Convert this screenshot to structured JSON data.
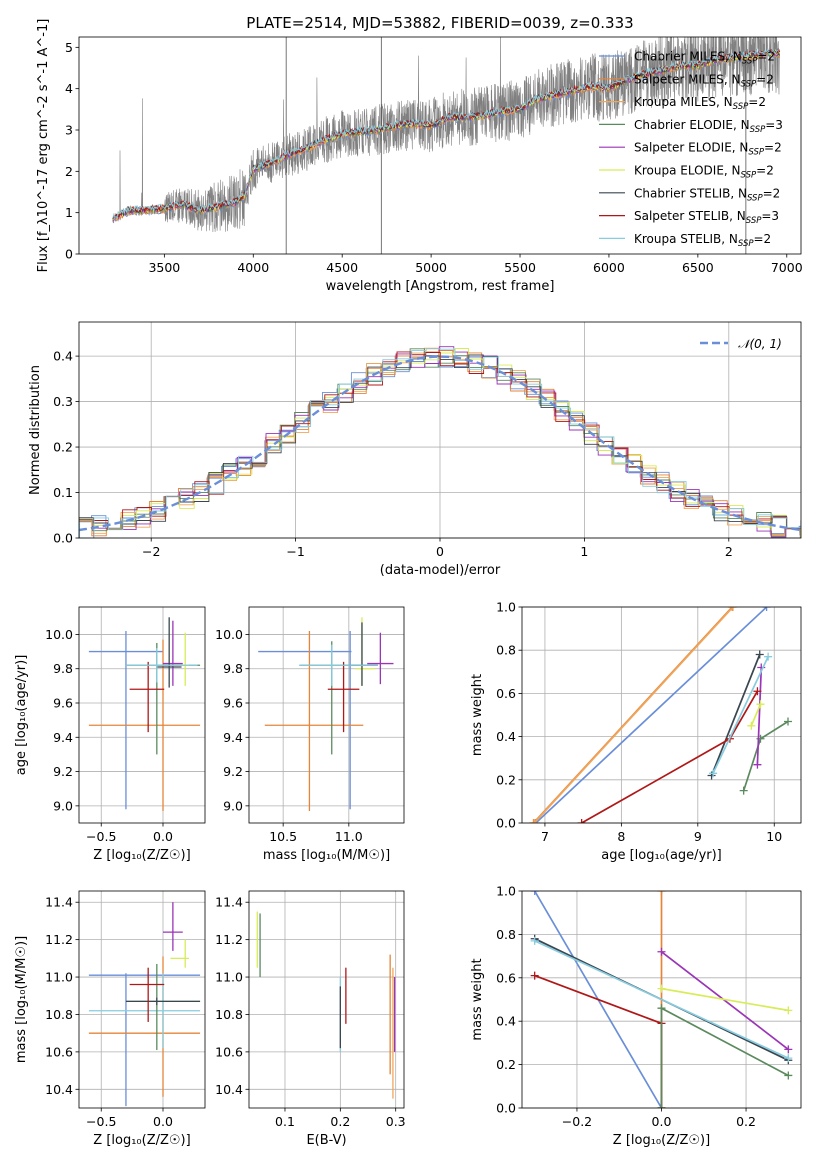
{
  "colors": {
    "chabrier_miles": "#6a8fd8",
    "salpeter_miles": "#e5853a",
    "kroupa_miles": "#f0a65a",
    "chabrier_elodie": "#5a8a5e",
    "salpeter_elodie": "#9b34b8",
    "kroupa_elodie": "#d8ec58",
    "chabrier_stelib": "#3a4650",
    "salpeter_stelib": "#b01818",
    "kroupa_stelib": "#88cce0",
    "data": "#808080",
    "grid": "#b0b0b0"
  },
  "chart_data": [
    {
      "type": "line",
      "title": "PLATE=2514, MJD=53882, FIBERID=0039, z=0.333",
      "xlabel": "wavelength [Angstrom, rest frame]",
      "ylabel": "Flux [f_λ10^-17 erg cm^-2 s^-1 A^-1]",
      "xlim": [
        3020,
        7080
      ],
      "ylim": [
        0,
        5.25
      ],
      "xticks": [
        "3500",
        "4000",
        "4500",
        "5000",
        "5500",
        "6000",
        "6500",
        "7000"
      ],
      "yticks": [
        "0",
        "1",
        "2",
        "3",
        "4",
        "5"
      ],
      "x_range_data": [
        3210,
        6960
      ],
      "continuum": {
        "x": [
          3210,
          3300,
          3400,
          3500,
          3600,
          3700,
          3800,
          3900,
          3950,
          4000,
          4100,
          4200,
          4300,
          4400,
          4500,
          4600,
          4700,
          4800,
          4900,
          5000,
          5100,
          5200,
          5300,
          5400,
          5500,
          5600,
          5700,
          5800,
          5900,
          6000,
          6100,
          6200,
          6300,
          6400,
          6500,
          6600,
          6700,
          6800,
          6900,
          6960
        ],
        "y": [
          0.85,
          1.05,
          1.05,
          1.1,
          1.2,
          1.05,
          1.15,
          1.25,
          1.4,
          2.05,
          2.2,
          2.4,
          2.55,
          2.75,
          2.9,
          2.95,
          3.0,
          3.1,
          3.15,
          3.1,
          3.3,
          3.3,
          3.35,
          3.45,
          3.5,
          3.75,
          3.85,
          3.95,
          4.05,
          4.0,
          4.2,
          4.35,
          4.45,
          4.55,
          4.55,
          4.7,
          4.75,
          4.8,
          4.85,
          4.85
        ]
      },
      "legend_position": "right",
      "series": [
        {
          "name": "Chabrier MILES, N_SSP=2",
          "color": "chabrier_miles"
        },
        {
          "name": "Salpeter MILES, N_SSP=2",
          "color": "salpeter_miles"
        },
        {
          "name": "Kroupa MILES, N_SSP=2",
          "color": "kroupa_miles"
        },
        {
          "name": "Chabrier ELODIE, N_SSP=3",
          "color": "chabrier_elodie"
        },
        {
          "name": "Salpeter ELODIE, N_SSP=2",
          "color": "salpeter_elodie"
        },
        {
          "name": "Kroupa ELODIE, N_SSP=2",
          "color": "kroupa_elodie"
        },
        {
          "name": "Chabrier STELIB, N_SSP=2",
          "color": "chabrier_stelib"
        },
        {
          "name": "Salpeter STELIB, N_SSP=3",
          "color": "salpeter_stelib"
        },
        {
          "name": "Kroupa STELIB, N_SSP=2",
          "color": "kroupa_stelib"
        }
      ]
    },
    {
      "type": "histogram",
      "xlabel": "(data-model)/error",
      "ylabel": "Normed distribution",
      "xlim": [
        -2.5,
        2.5
      ],
      "ylim": [
        0,
        0.475
      ],
      "xticks": [
        "−2",
        "−1",
        "0",
        "1",
        "2"
      ],
      "yticks": [
        "0.0",
        "0.1",
        "0.2",
        "0.3",
        "0.4"
      ],
      "reference": {
        "name": "𝒩(0, 1)",
        "mean": 0,
        "sigma": 1
      },
      "bin_width": 0.1,
      "legend_position": "top-right"
    },
    {
      "type": "errorbar",
      "xlabel": "Z [log₁₀(Z/Z☉)]",
      "ylabel": "age  [log₁₀(age/yr)]",
      "xlim": [
        -0.68,
        0.34
      ],
      "ylim": [
        8.9,
        10.16
      ],
      "xticks": [
        "−0.5",
        "0.0"
      ],
      "yticks": [
        "9.0",
        "9.2",
        "9.4",
        "9.6",
        "9.8",
        "10.0"
      ],
      "points": [
        {
          "s": "chabrier_miles",
          "x": -0.3,
          "xerr": [
            0.3,
            0.3
          ],
          "y": 9.9,
          "yerr": [
            0.92,
            0.12
          ]
        },
        {
          "s": "salpeter_miles",
          "x": 0.0,
          "xerr": [
            0.6,
            0.3
          ],
          "y": 9.47,
          "yerr": [
            0.5,
            0.5
          ]
        },
        {
          "s": "chabrier_elodie",
          "x": -0.05,
          "xerr": [
            0.25,
            0.35
          ],
          "y": 9.82,
          "yerr": [
            0.52,
            0.13
          ]
        },
        {
          "s": "salpeter_elodie",
          "x": 0.08,
          "xerr": [
            0.08,
            0.08
          ],
          "y": 9.83,
          "yerr": [
            0.13,
            0.25
          ]
        },
        {
          "s": "kroupa_elodie",
          "x": 0.18,
          "xerr": [
            0.12,
            0.03
          ],
          "y": 9.82,
          "yerr": [
            0.12,
            0.19
          ]
        },
        {
          "s": "chabrier_stelib",
          "x": 0.05,
          "xerr": [
            0.1,
            0.1
          ],
          "y": 9.81,
          "yerr": [
            0.12,
            0.29
          ]
        },
        {
          "s": "salpeter_stelib",
          "x": -0.12,
          "xerr": [
            0.15,
            0.13
          ],
          "y": 9.68,
          "yerr": [
            0.25,
            0.16
          ]
        },
        {
          "s": "kroupa_stelib",
          "x": -0.05,
          "xerr": [
            0.25,
            0.33
          ],
          "y": 9.82,
          "yerr": [
            0.1,
            0.1
          ]
        }
      ]
    },
    {
      "type": "errorbar",
      "xlabel": "mass [log₁₀(M/M☉)]",
      "ylabel": "",
      "xlim": [
        10.24,
        11.42
      ],
      "ylim": [
        8.9,
        10.16
      ],
      "xticks": [
        "10.5",
        "11.0"
      ],
      "yticks": [
        "9.0",
        "9.2",
        "9.4",
        "9.6",
        "9.8",
        "10.0"
      ],
      "points": [
        {
          "s": "chabrier_miles",
          "x": 11.01,
          "xerr": [
            0.7,
            0.01
          ],
          "y": 9.9,
          "yerr": [
            0.92,
            0.12
          ]
        },
        {
          "s": "salpeter_miles",
          "x": 10.7,
          "xerr": [
            0.34,
            0.41
          ],
          "y": 9.47,
          "yerr": [
            0.5,
            0.55
          ]
        },
        {
          "s": "chabrier_elodie",
          "x": 10.87,
          "xerr": [
            0.24,
            0.26
          ],
          "y": 9.82,
          "yerr": [
            0.52,
            0.14
          ]
        },
        {
          "s": "salpeter_elodie",
          "x": 11.24,
          "xerr": [
            0.1,
            0.1
          ],
          "y": 9.83,
          "yerr": [
            0.12,
            0.18
          ]
        },
        {
          "s": "kroupa_elodie",
          "x": 11.1,
          "xerr": [
            0.05,
            0.1
          ],
          "y": 9.8,
          "yerr": [
            0.1,
            0.3
          ]
        },
        {
          "s": "chabrier_stelib",
          "x": 11.1,
          "xerr": [
            0.1,
            0.12
          ],
          "y": 9.82,
          "yerr": [
            0.12,
            0.25
          ]
        },
        {
          "s": "salpeter_stelib",
          "x": 10.96,
          "xerr": [
            0.12,
            0.12
          ],
          "y": 9.68,
          "yerr": [
            0.25,
            0.16
          ]
        },
        {
          "s": "kroupa_stelib",
          "x": 10.87,
          "xerr": [
            0.25,
            0.35
          ],
          "y": 9.82,
          "yerr": [
            0.12,
            0.12
          ]
        }
      ]
    },
    {
      "type": "line",
      "xlabel": "age  [log₁₀(age/yr)]",
      "ylabel": "mass weight",
      "xlim": [
        6.7,
        10.35
      ],
      "ylim": [
        0,
        1
      ],
      "xticks": [
        "7",
        "8",
        "9",
        "10"
      ],
      "yticks": [
        "0.0",
        "0.2",
        "0.4",
        "0.6",
        "0.8",
        "1.0"
      ],
      "series": [
        {
          "s": "chabrier_miles",
          "x": [
            6.88,
            9.9
          ],
          "y": [
            0.0,
            1.0
          ]
        },
        {
          "s": "salpeter_miles",
          "x": [
            6.85,
            9.45
          ],
          "y": [
            0.0,
            1.0
          ]
        },
        {
          "s": "kroupa_miles",
          "x": [
            6.86,
            9.46
          ],
          "y": [
            0.0,
            1.0
          ]
        },
        {
          "s": "chabrier_elodie",
          "x": [
            9.6,
            9.82,
            10.18
          ],
          "y": [
            0.15,
            0.39,
            0.47
          ]
        },
        {
          "s": "salpeter_elodie",
          "x": [
            9.78,
            9.83
          ],
          "y": [
            0.27,
            0.72
          ]
        },
        {
          "s": "kroupa_elodie",
          "x": [
            9.7,
            9.82
          ],
          "y": [
            0.45,
            0.55
          ]
        },
        {
          "s": "chabrier_stelib",
          "x": [
            9.18,
            9.81
          ],
          "y": [
            0.22,
            0.78
          ]
        },
        {
          "s": "salpeter_stelib",
          "x": [
            7.48,
            9.42,
            9.78
          ],
          "y": [
            0.0,
            0.39,
            0.61
          ]
        },
        {
          "s": "kroupa_stelib",
          "x": [
            9.2,
            9.92
          ],
          "y": [
            0.23,
            0.77
          ]
        }
      ]
    },
    {
      "type": "errorbar",
      "xlabel": "Z [log₁₀(Z/Z☉)]",
      "ylabel": "mass [log₁₀(M/M☉)]",
      "xlim": [
        -0.68,
        0.34
      ],
      "ylim": [
        10.3,
        11.46
      ],
      "xticks": [
        "−0.5",
        "0.0"
      ],
      "yticks": [
        "10.4",
        "10.6",
        "10.8",
        "11.0",
        "11.2",
        "11.4"
      ],
      "points": [
        {
          "s": "chabrier_miles",
          "x": -0.3,
          "xerr": [
            0.3,
            0.6
          ],
          "y": 11.01,
          "yerr": [
            0.7,
            0.01
          ]
        },
        {
          "s": "salpeter_miles",
          "x": 0.0,
          "xerr": [
            0.6,
            0.3
          ],
          "y": 10.7,
          "yerr": [
            0.34,
            0.41
          ]
        },
        {
          "s": "kroupa_stelib",
          "x": 0.0,
          "xerr": [
            0.6,
            0.3
          ],
          "y": 10.82,
          "yerr": [
            0.2,
            0.2
          ]
        },
        {
          "s": "chabrier_elodie",
          "x": -0.05,
          "xerr": [
            0.25,
            0.35
          ],
          "y": 10.87,
          "yerr": [
            0.26,
            0.2
          ]
        },
        {
          "s": "chabrier_stelib",
          "x": -0.05,
          "xerr": [
            0.25,
            0.35
          ],
          "y": 10.87,
          "yerr": [
            0.02,
            0.02
          ]
        },
        {
          "s": "salpeter_elodie",
          "x": 0.08,
          "xerr": [
            0.08,
            0.08
          ],
          "y": 11.24,
          "yerr": [
            0.1,
            0.16
          ]
        },
        {
          "s": "kroupa_elodie",
          "x": 0.18,
          "xerr": [
            0.12,
            0.03
          ],
          "y": 11.1,
          "yerr": [
            0.05,
            0.1
          ]
        },
        {
          "s": "salpeter_stelib",
          "x": -0.12,
          "xerr": [
            0.15,
            0.13
          ],
          "y": 10.96,
          "yerr": [
            0.2,
            0.09
          ]
        }
      ]
    },
    {
      "type": "errorbar",
      "xlabel": "E(B-V)",
      "ylabel": "",
      "xlim": [
        0.035,
        0.315
      ],
      "ylim": [
        10.3,
        11.46
      ],
      "xticks": [
        "0.1",
        "0.2",
        "0.3"
      ],
      "yticks": [
        "10.4",
        "10.6",
        "10.8",
        "11.0",
        "11.2",
        "11.4"
      ],
      "points": [
        {
          "s": "kroupa_elodie",
          "x": 0.05,
          "xerr": [
            0,
            0
          ],
          "y": 11.17,
          "yerr": [
            0.12,
            0.18
          ]
        },
        {
          "s": "chabrier_elodie",
          "x": 0.055,
          "xerr": [
            0,
            0
          ],
          "y": 11.2,
          "yerr": [
            0.2,
            0.14
          ]
        },
        {
          "s": "kroupa_stelib",
          "x": 0.2,
          "xerr": [
            0,
            0
          ],
          "y": 10.8,
          "yerr": [
            0.2,
            0.2
          ]
        },
        {
          "s": "chabrier_stelib",
          "x": 0.2,
          "xerr": [
            0,
            0
          ],
          "y": 10.8,
          "yerr": [
            0.18,
            0.15
          ]
        },
        {
          "s": "salpeter_stelib",
          "x": 0.21,
          "xerr": [
            0,
            0
          ],
          "y": 10.9,
          "yerr": [
            0.15,
            0.15
          ]
        },
        {
          "s": "salpeter_miles",
          "x": 0.29,
          "xerr": [
            0,
            0
          ],
          "y": 10.8,
          "yerr": [
            0.32,
            0.32
          ]
        },
        {
          "s": "kroupa_miles",
          "x": 0.295,
          "xerr": [
            0,
            0
          ],
          "y": 10.75,
          "yerr": [
            0.4,
            0.3
          ]
        },
        {
          "s": "salpeter_elodie",
          "x": 0.298,
          "xerr": [
            0,
            0
          ],
          "y": 10.8,
          "yerr": [
            0.2,
            0.2
          ]
        }
      ]
    },
    {
      "type": "line",
      "xlabel": "Z [log₁₀(Z/Z☉)]",
      "ylabel": "mass weight",
      "xlim": [
        -0.33,
        0.33
      ],
      "ylim": [
        0,
        1
      ],
      "xticks": [
        "−0.2",
        "0.0",
        "0.2"
      ],
      "yticks": [
        "0.0",
        "0.2",
        "0.4",
        "0.6",
        "0.8",
        "1.0"
      ],
      "series": [
        {
          "s": "chabrier_miles",
          "x": [
            -0.3,
            0.0
          ],
          "y": [
            1.0,
            0.0
          ]
        },
        {
          "s": "salpeter_miles",
          "x": [
            0.0,
            0.0
          ],
          "y": [
            0.0,
            1.0
          ]
        },
        {
          "s": "chabrier_stelib",
          "x": [
            -0.3,
            0.3
          ],
          "y": [
            0.78,
            0.22
          ]
        },
        {
          "s": "kroupa_stelib",
          "x": [
            -0.3,
            0.3
          ],
          "y": [
            0.77,
            0.23
          ]
        },
        {
          "s": "salpeter_stelib",
          "x": [
            -0.3,
            0.0,
            0.0
          ],
          "y": [
            0.61,
            0.39,
            0.0
          ]
        },
        {
          "s": "salpeter_elodie",
          "x": [
            0.0,
            0.3
          ],
          "y": [
            0.72,
            0.27
          ]
        },
        {
          "s": "kroupa_elodie",
          "x": [
            0.0,
            0.3
          ],
          "y": [
            0.55,
            0.45
          ]
        },
        {
          "s": "chabrier_elodie",
          "x": [
            0.0,
            0.0,
            0.3
          ],
          "y": [
            0.0,
            0.46,
            0.15
          ]
        }
      ]
    }
  ]
}
